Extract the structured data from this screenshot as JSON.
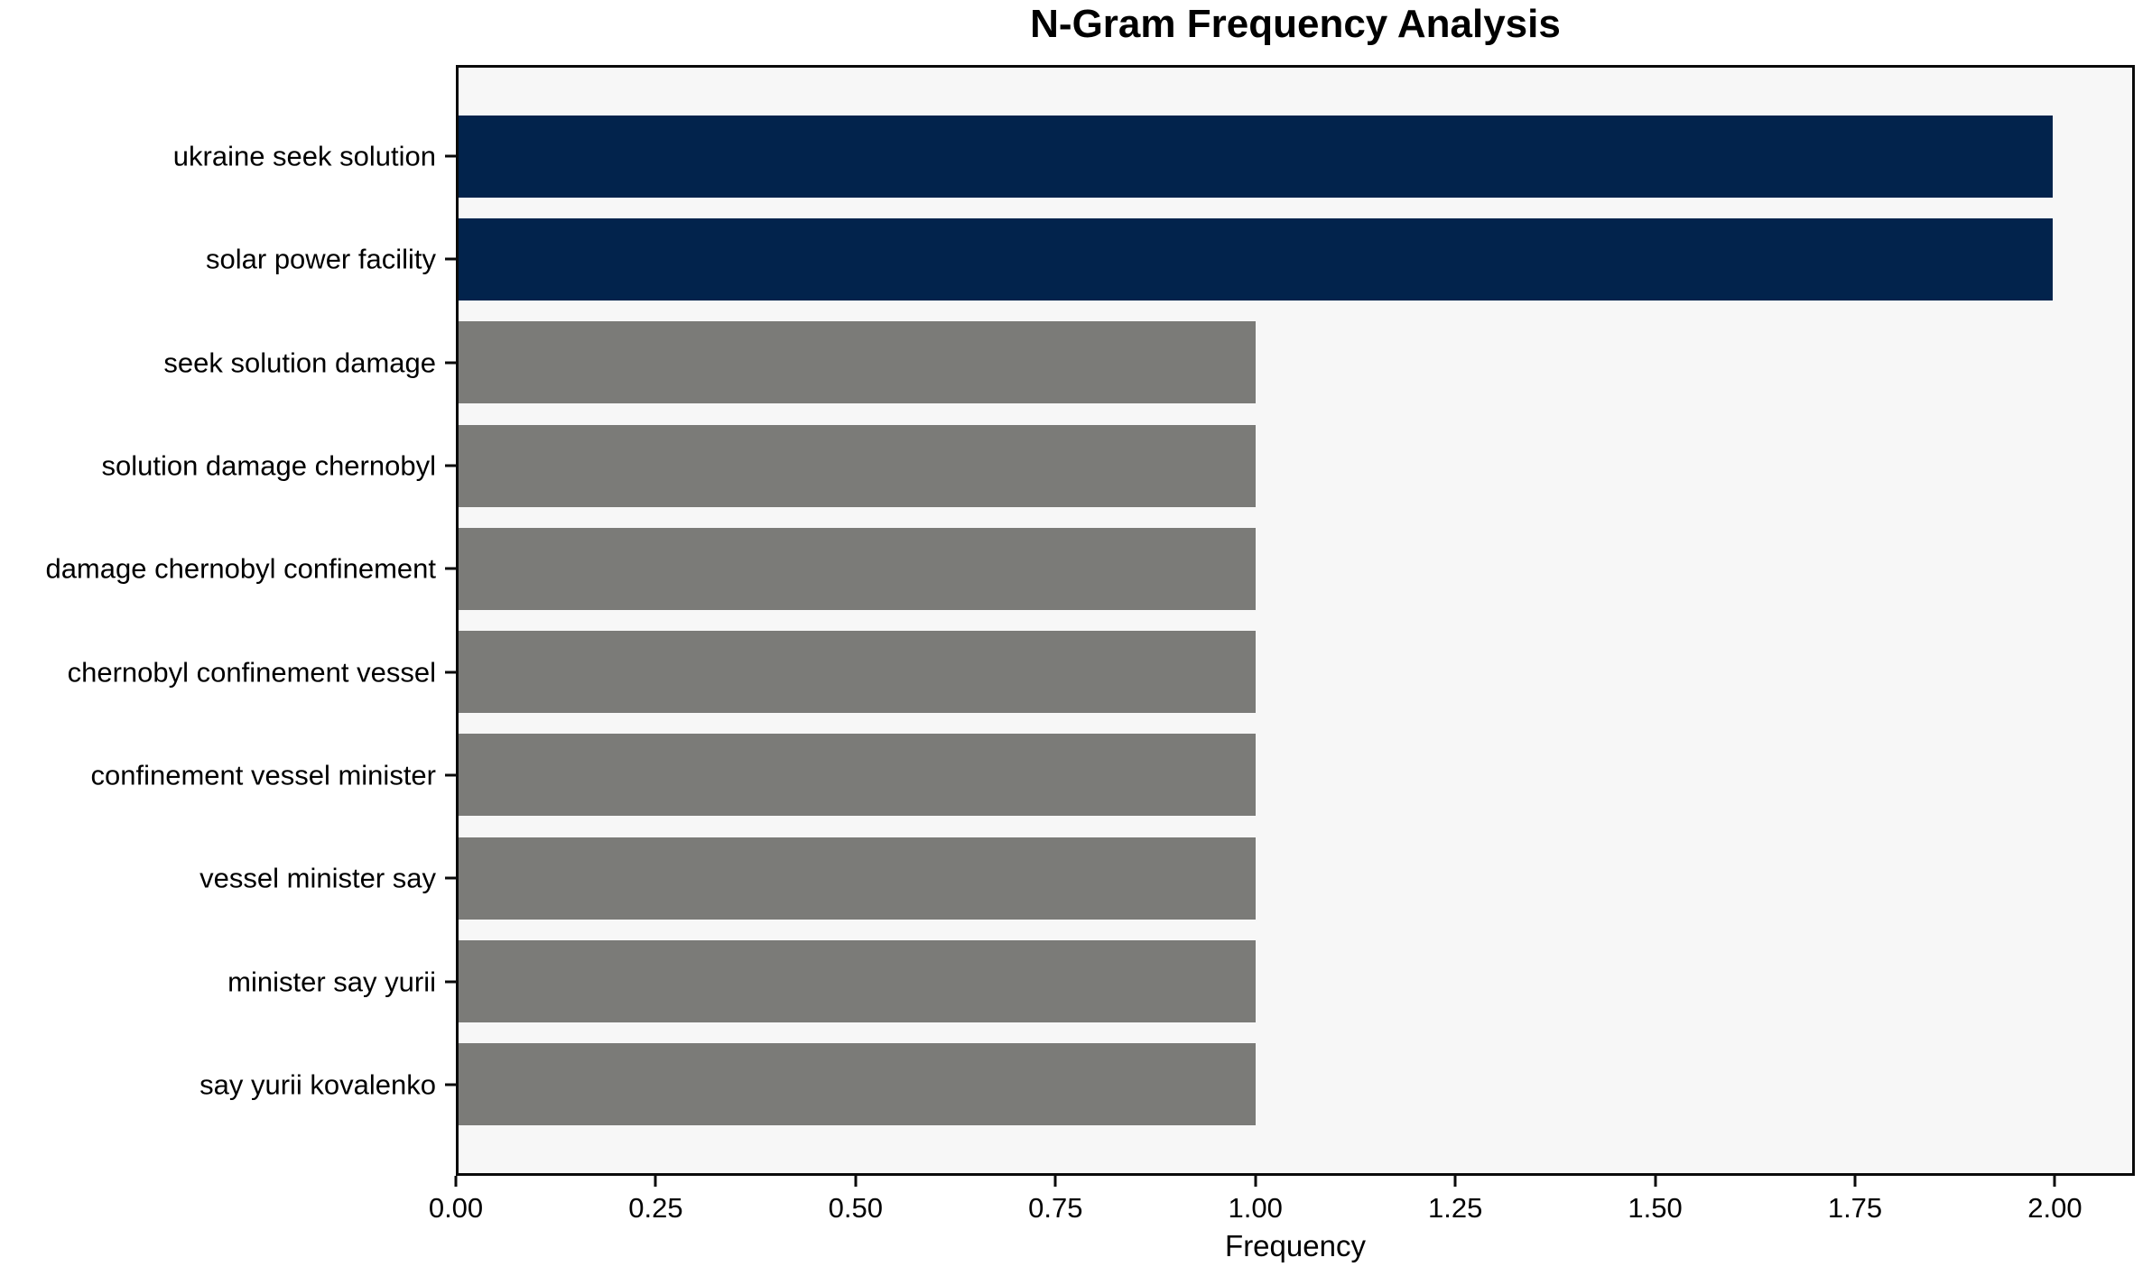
{
  "figure": {
    "background": "#ffffff"
  },
  "chart_data": {
    "type": "bar",
    "orientation": "horizontal",
    "title": "N-Gram Frequency Analysis",
    "xlabel": "Frequency",
    "ylabel": "",
    "categories": [
      "ukraine seek solution",
      "solar power facility",
      "seek solution damage",
      "solution damage chernobyl",
      "damage chernobyl confinement",
      "chernobyl confinement vessel",
      "confinement vessel minister",
      "vessel minister say",
      "minister say yurii",
      "say yurii kovalenko"
    ],
    "values": [
      2,
      2,
      1,
      1,
      1,
      1,
      1,
      1,
      1,
      1
    ],
    "bar_colors": [
      "#02234c",
      "#02234c",
      "#7b7b78",
      "#7b7b78",
      "#7b7b78",
      "#7b7b78",
      "#7b7b78",
      "#7b7b78",
      "#7b7b78",
      "#7b7b78"
    ],
    "x_tick_values": [
      0,
      0.25,
      0.5,
      0.75,
      1.0,
      1.25,
      1.5,
      1.75,
      2.0
    ],
    "x_tick_labels": [
      "0.00",
      "0.25",
      "0.50",
      "0.75",
      "1.00",
      "1.25",
      "1.50",
      "1.75",
      "2.00"
    ],
    "xlim": [
      0,
      2.1
    ],
    "grid": false,
    "legend": null,
    "plot_background": "#f7f7f7",
    "highlight_color": "#02234c",
    "default_color": "#7b7b78"
  }
}
